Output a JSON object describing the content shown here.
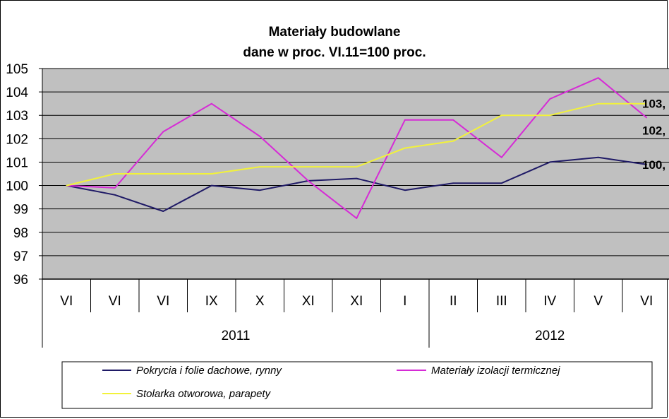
{
  "chart_data": {
    "type": "line",
    "title": "Materiały budowlane",
    "subtitle": "dane w proc. VI.11=100 proc.",
    "categories": [
      "VI",
      "VI",
      "VI",
      "IX",
      "X",
      "XI",
      "XI",
      "I",
      "II",
      "III",
      "IV",
      "V",
      "VI"
    ],
    "years": [
      {
        "label": "2011",
        "span": 8
      },
      {
        "label": "2012",
        "span": 5
      }
    ],
    "yticks": [
      "105",
      "104",
      "103",
      "102",
      "101",
      "100",
      "99",
      "98",
      "97",
      "96"
    ],
    "ylim": [
      96,
      105
    ],
    "grid": true,
    "legend_position": "bottom",
    "series": [
      {
        "name": "Pokrycia i folie dachowe, rynny",
        "color": "#1f1a66",
        "values": [
          100.0,
          99.6,
          98.9,
          100.0,
          99.8,
          100.2,
          100.3,
          99.8,
          100.1,
          100.1,
          101.0,
          101.2,
          100.9
        ],
        "end_label": "100,"
      },
      {
        "name": "Materiały izolacji termicznej",
        "color": "#d62bd6",
        "values": [
          100.0,
          99.9,
          102.3,
          103.5,
          102.1,
          100.2,
          98.6,
          102.8,
          102.8,
          101.2,
          103.7,
          104.6,
          102.9
        ],
        "end_label": "102,"
      },
      {
        "name": "Stolarka otworowa, parapety",
        "color": "#f2f23a",
        "values": [
          100.0,
          100.5,
          100.5,
          100.5,
          100.8,
          100.8,
          100.8,
          101.6,
          101.9,
          103.0,
          103.0,
          103.5,
          103.5
        ],
        "end_label": "103,"
      }
    ]
  }
}
